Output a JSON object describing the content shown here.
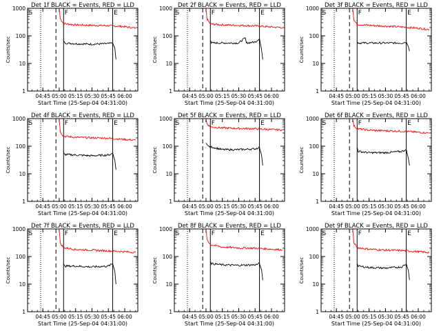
{
  "chart_data": [
    {
      "type": "line",
      "title": "Det 1f BLACK = Events, RED = LLD",
      "xlabel": "Start Time (25-Sep-04 04:31:00)",
      "ylabel": "Counts/sec",
      "y_scale": "log",
      "ylim": [
        1,
        1000
      ],
      "xlim": [
        "04:31",
        "06:12"
      ],
      "x_ticks": [
        "04:45",
        "05:00",
        "05:15",
        "05:30",
        "05:45",
        "06:00"
      ],
      "y_ticks": [
        "1",
        "10",
        "100",
        "1000"
      ],
      "markers": [
        {
          "label": "S",
          "time": "04:31",
          "style": "solid"
        },
        {
          "label": "",
          "time": "04:43",
          "style": "dotted"
        },
        {
          "label": "",
          "time": "04:57",
          "style": "dashed"
        },
        {
          "label": "F",
          "time": "05:04",
          "style": "solid"
        },
        {
          "label": "E",
          "time": "05:49",
          "style": "solid"
        }
      ],
      "series": [
        {
          "color": "#ff0000",
          "x": [
            "05:00",
            "05:01",
            "05:04",
            "05:15",
            "05:30",
            "05:45",
            "06:00",
            "06:10"
          ],
          "values": [
            1000,
            420,
            280,
            250,
            240,
            235,
            215,
            190
          ]
        },
        {
          "color": "#000000",
          "x": [
            "05:04",
            "05:05",
            "05:15",
            "05:30",
            "05:45",
            "05:49",
            "05:51",
            "05:52"
          ],
          "values": [
            70,
            55,
            52,
            50,
            52,
            55,
            35,
            14
          ]
        }
      ]
    },
    {
      "type": "line",
      "title": "Det 2f BLACK = Events, RED = LLD",
      "xlabel": "Start Time (25-Sep-04 04:31:00)",
      "ylabel": "Counts/sec",
      "y_scale": "log",
      "ylim": [
        1,
        1000
      ],
      "xlim": [
        "04:31",
        "06:12"
      ],
      "x_ticks": [
        "04:45",
        "05:00",
        "05:15",
        "05:30",
        "05:45",
        "06:00"
      ],
      "y_ticks": [
        "1",
        "10",
        "100",
        "1000"
      ],
      "markers": [
        {
          "label": "S",
          "time": "04:31",
          "style": "solid"
        },
        {
          "label": "",
          "time": "04:43",
          "style": "dotted"
        },
        {
          "label": "",
          "time": "04:57",
          "style": "dashed"
        },
        {
          "label": "F",
          "time": "05:04",
          "style": "solid"
        },
        {
          "label": "E",
          "time": "05:49",
          "style": "solid"
        }
      ],
      "series": [
        {
          "color": "#ff0000",
          "x": [
            "05:00",
            "05:01",
            "05:04",
            "05:15",
            "05:30",
            "05:45",
            "06:00",
            "06:10"
          ],
          "values": [
            1000,
            400,
            270,
            250,
            240,
            230,
            210,
            200
          ]
        },
        {
          "color": "#000000",
          "x": [
            "05:04",
            "05:05",
            "05:15",
            "05:30",
            "05:36",
            "05:37",
            "05:45",
            "05:49",
            "05:51",
            "05:52"
          ],
          "values": [
            70,
            55,
            55,
            55,
            85,
            55,
            60,
            80,
            30,
            14
          ]
        }
      ]
    },
    {
      "type": "line",
      "title": "Det 3f BLACK = Events, RED = LLD",
      "xlabel": "Start Time (25-Sep-04 04:31:00)",
      "ylabel": "Counts/sec",
      "y_scale": "log",
      "ylim": [
        1,
        1000
      ],
      "xlim": [
        "04:31",
        "06:12"
      ],
      "x_ticks": [
        "04:45",
        "05:00",
        "05:15",
        "05:30",
        "05:45",
        "06:00"
      ],
      "y_ticks": [
        "1",
        "10",
        "100",
        "1000"
      ],
      "markers": [
        {
          "label": "S",
          "time": "04:31",
          "style": "solid"
        },
        {
          "label": "",
          "time": "04:43",
          "style": "dotted"
        },
        {
          "label": "",
          "time": "04:57",
          "style": "dashed"
        },
        {
          "label": "F",
          "time": "05:04",
          "style": "solid"
        },
        {
          "label": "E",
          "time": "05:49",
          "style": "solid"
        }
      ],
      "series": [
        {
          "color": "#ff0000",
          "x": [
            "05:00",
            "05:01",
            "05:04",
            "05:15",
            "05:30",
            "05:45",
            "06:00",
            "06:10"
          ],
          "values": [
            1000,
            380,
            260,
            240,
            225,
            210,
            190,
            170
          ]
        },
        {
          "color": "#000000",
          "x": [
            "05:04",
            "05:05",
            "05:15",
            "05:30",
            "05:45",
            "05:49",
            "05:51",
            "05:52"
          ],
          "values": [
            60,
            55,
            55,
            55,
            55,
            60,
            40,
            28
          ]
        }
      ]
    },
    {
      "type": "line",
      "title": "Det 4f BLACK = Events, RED = LLD",
      "xlabel": "Start Time (25-Sep-04 04:31:00)",
      "ylabel": "Counts/sec",
      "y_scale": "log",
      "ylim": [
        1,
        1000
      ],
      "xlim": [
        "04:31",
        "06:12"
      ],
      "x_ticks": [
        "04:45",
        "05:00",
        "05:15",
        "05:30",
        "05:45",
        "06:00"
      ],
      "y_ticks": [
        "1",
        "10",
        "100",
        "1000"
      ],
      "markers": [
        {
          "label": "S",
          "time": "04:31",
          "style": "solid"
        },
        {
          "label": "",
          "time": "04:43",
          "style": "dotted"
        },
        {
          "label": "",
          "time": "04:57",
          "style": "dashed"
        },
        {
          "label": "F",
          "time": "05:04",
          "style": "solid"
        },
        {
          "label": "E",
          "time": "05:49",
          "style": "solid"
        }
      ],
      "series": [
        {
          "color": "#ff0000",
          "x": [
            "05:00",
            "05:01",
            "05:04",
            "05:15",
            "05:30",
            "05:45",
            "06:00",
            "06:10"
          ],
          "values": [
            1000,
            330,
            230,
            210,
            200,
            195,
            175,
            165
          ]
        },
        {
          "color": "#000000",
          "x": [
            "05:04",
            "05:05",
            "05:15",
            "05:30",
            "05:45",
            "05:49",
            "05:51",
            "05:52"
          ],
          "values": [
            60,
            50,
            48,
            45,
            48,
            55,
            30,
            14
          ]
        }
      ]
    },
    {
      "type": "line",
      "title": "Det 5f BLACK = Events, RED = LLD",
      "xlabel": "Start Time (25-Sep-04 04:31:00)",
      "ylabel": "Counts/sec",
      "y_scale": "log",
      "ylim": [
        1,
        1000
      ],
      "xlim": [
        "04:31",
        "06:12"
      ],
      "x_ticks": [
        "04:45",
        "05:00",
        "05:15",
        "05:30",
        "05:45",
        "06:00"
      ],
      "y_ticks": [
        "1",
        "10",
        "100",
        "1000"
      ],
      "markers": [
        {
          "label": "S",
          "time": "04:31",
          "style": "solid"
        },
        {
          "label": "",
          "time": "04:43",
          "style": "dotted"
        },
        {
          "label": "",
          "time": "04:57",
          "style": "dashed"
        },
        {
          "label": "F",
          "time": "05:04",
          "style": "solid"
        },
        {
          "label": "E",
          "time": "05:49",
          "style": "solid"
        }
      ],
      "series": [
        {
          "color": "#ff0000",
          "x": [
            "05:00",
            "05:01",
            "05:04",
            "05:15",
            "05:30",
            "05:45",
            "06:00",
            "06:10"
          ],
          "values": [
            1000,
            650,
            500,
            460,
            440,
            430,
            400,
            390
          ]
        },
        {
          "color": "#000000",
          "x": [
            "05:00",
            "05:02",
            "05:15",
            "05:30",
            "05:45",
            "05:49",
            "05:51",
            "05:52"
          ],
          "values": [
            130,
            100,
            75,
            75,
            80,
            90,
            45,
            20
          ]
        }
      ]
    },
    {
      "type": "line",
      "title": "Det 6f BLACK = Events, RED = LLD",
      "xlabel": "Start Time (25-Sep-04 04:31:00)",
      "ylabel": "Counts/sec",
      "y_scale": "log",
      "ylim": [
        1,
        1000
      ],
      "xlim": [
        "04:31",
        "06:12"
      ],
      "x_ticks": [
        "04:45",
        "05:00",
        "05:15",
        "05:30",
        "05:45",
        "06:00"
      ],
      "y_ticks": [
        "1",
        "10",
        "100",
        "1000"
      ],
      "markers": [
        {
          "label": "S",
          "time": "04:31",
          "style": "solid"
        },
        {
          "label": "",
          "time": "04:43",
          "style": "dotted"
        },
        {
          "label": "",
          "time": "04:57",
          "style": "dashed"
        },
        {
          "label": "F",
          "time": "05:04",
          "style": "solid"
        },
        {
          "label": "E",
          "time": "05:49",
          "style": "solid"
        }
      ],
      "series": [
        {
          "color": "#ff0000",
          "x": [
            "05:00",
            "05:01",
            "05:04",
            "05:15",
            "05:30",
            "05:45",
            "06:00",
            "06:10"
          ],
          "values": [
            1000,
            550,
            430,
            380,
            360,
            350,
            320,
            300
          ]
        },
        {
          "color": "#000000",
          "x": [
            "05:04",
            "05:05",
            "05:15",
            "05:30",
            "05:45",
            "05:49",
            "05:51",
            "05:52"
          ],
          "values": [
            90,
            65,
            58,
            58,
            65,
            75,
            35,
            20
          ]
        }
      ]
    },
    {
      "type": "line",
      "title": "Det 7f BLACK = Events, RED = LLD",
      "xlabel": "Start Time (25-Sep-04 04:31:00)",
      "ylabel": "Counts/sec",
      "y_scale": "log",
      "ylim": [
        1,
        1000
      ],
      "xlim": [
        "04:31",
        "06:12"
      ],
      "x_ticks": [
        "04:45",
        "05:00",
        "05:15",
        "05:30",
        "05:45",
        "06:00"
      ],
      "y_ticks": [
        "1",
        "10",
        "100",
        "1000"
      ],
      "markers": [
        {
          "label": "S",
          "time": "04:31",
          "style": "solid"
        },
        {
          "label": "",
          "time": "04:43",
          "style": "dotted"
        },
        {
          "label": "",
          "time": "04:57",
          "style": "dashed"
        },
        {
          "label": "F",
          "time": "05:04",
          "style": "solid"
        },
        {
          "label": "E",
          "time": "05:49",
          "style": "solid"
        }
      ],
      "series": [
        {
          "color": "#ff0000",
          "x": [
            "05:00",
            "05:01",
            "05:04",
            "05:15",
            "05:30",
            "05:45",
            "06:00",
            "06:10"
          ],
          "values": [
            1000,
            300,
            210,
            180,
            170,
            160,
            150,
            140
          ]
        },
        {
          "color": "#000000",
          "x": [
            "05:04",
            "05:05",
            "05:15",
            "05:30",
            "05:45",
            "05:49",
            "05:51",
            "05:52"
          ],
          "values": [
            55,
            45,
            45,
            42,
            45,
            55,
            28,
            10
          ]
        }
      ]
    },
    {
      "type": "line",
      "title": "Det 8f BLACK = Events, RED = LLD",
      "xlabel": "Start Time (25-Sep-04 04:31:00)",
      "ylabel": "Counts/sec",
      "y_scale": "log",
      "ylim": [
        1,
        1000
      ],
      "xlim": [
        "04:31",
        "06:12"
      ],
      "x_ticks": [
        "04:45",
        "05:00",
        "05:15",
        "05:30",
        "05:45",
        "06:00"
      ],
      "y_ticks": [
        "1",
        "10",
        "100",
        "1000"
      ],
      "markers": [
        {
          "label": "S",
          "time": "04:31",
          "style": "solid"
        },
        {
          "label": "",
          "time": "04:43",
          "style": "dotted"
        },
        {
          "label": "",
          "time": "04:57",
          "style": "dashed"
        },
        {
          "label": "F",
          "time": "05:04",
          "style": "solid"
        },
        {
          "label": "E",
          "time": "05:49",
          "style": "solid"
        }
      ],
      "series": [
        {
          "color": "#ff0000",
          "x": [
            "05:00",
            "05:01",
            "05:04",
            "05:15",
            "05:30",
            "05:45",
            "06:00",
            "06:10"
          ],
          "values": [
            1000,
            420,
            270,
            220,
            205,
            200,
            185,
            175
          ]
        },
        {
          "color": "#000000",
          "x": [
            "05:04",
            "05:05",
            "05:15",
            "05:30",
            "05:45",
            "05:49",
            "05:51",
            "05:52"
          ],
          "values": [
            65,
            55,
            50,
            48,
            50,
            55,
            32,
            14
          ]
        }
      ]
    },
    {
      "type": "line",
      "title": "Det 9f BLACK = Events, RED = LLD",
      "xlabel": "Start Time (25-Sep-04 04:31:00)",
      "ylabel": "Counts/sec",
      "y_scale": "log",
      "ylim": [
        1,
        1000
      ],
      "xlim": [
        "04:31",
        "06:12"
      ],
      "x_ticks": [
        "04:45",
        "05:00",
        "05:15",
        "05:30",
        "05:45",
        "06:00"
      ],
      "y_ticks": [
        "1",
        "10",
        "100",
        "1000"
      ],
      "markers": [
        {
          "label": "S",
          "time": "04:31",
          "style": "solid"
        },
        {
          "label": "",
          "time": "04:43",
          "style": "dotted"
        },
        {
          "label": "",
          "time": "04:57",
          "style": "dashed"
        },
        {
          "label": "F",
          "time": "05:04",
          "style": "solid"
        },
        {
          "label": "E",
          "time": "05:49",
          "style": "solid"
        }
      ],
      "series": [
        {
          "color": "#ff0000",
          "x": [
            "05:00",
            "05:01",
            "05:04",
            "05:15",
            "05:30",
            "05:45",
            "06:00",
            "06:10"
          ],
          "values": [
            1000,
            320,
            210,
            185,
            170,
            165,
            150,
            140
          ]
        },
        {
          "color": "#000000",
          "x": [
            "05:04",
            "05:05",
            "05:15",
            "05:30",
            "05:45",
            "05:49",
            "05:51",
            "05:52"
          ],
          "values": [
            55,
            45,
            40,
            38,
            42,
            55,
            30,
            14
          ]
        }
      ]
    }
  ]
}
